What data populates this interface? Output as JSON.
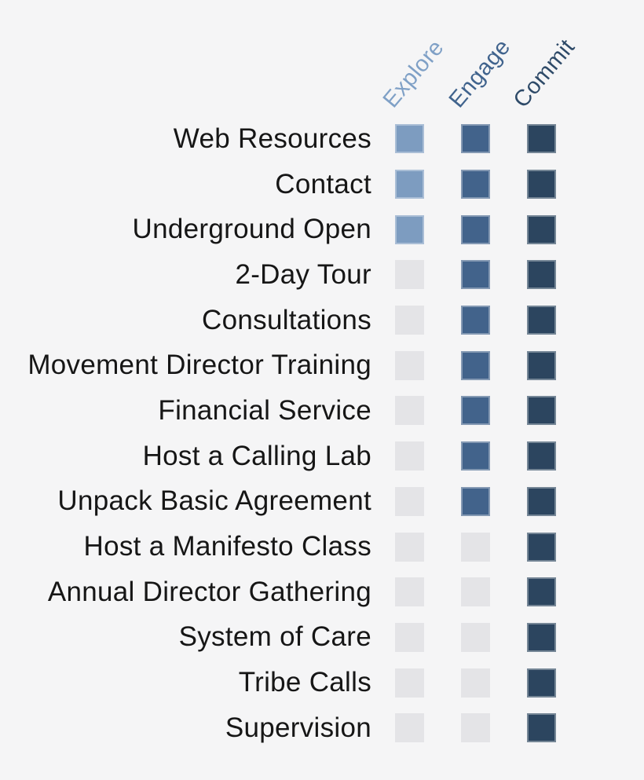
{
  "chart_data": {
    "type": "heatmap",
    "title": "",
    "columns": [
      "Explore",
      "Engage",
      "Commit"
    ],
    "rows": [
      {
        "label": "Web Resources",
        "tiers": [
          true,
          true,
          true
        ]
      },
      {
        "label": "Contact",
        "tiers": [
          true,
          true,
          true
        ]
      },
      {
        "label": "Underground Open",
        "tiers": [
          true,
          true,
          true
        ]
      },
      {
        "label": "2-Day Tour",
        "tiers": [
          false,
          true,
          true
        ]
      },
      {
        "label": "Consultations",
        "tiers": [
          false,
          true,
          true
        ]
      },
      {
        "label": "Movement Director Training",
        "tiers": [
          false,
          true,
          true
        ]
      },
      {
        "label": "Financial Service",
        "tiers": [
          false,
          true,
          true
        ]
      },
      {
        "label": "Host a Calling Lab",
        "tiers": [
          false,
          true,
          true
        ]
      },
      {
        "label": "Unpack Basic Agreement",
        "tiers": [
          false,
          true,
          true
        ]
      },
      {
        "label": "Host a Manifesto Class",
        "tiers": [
          false,
          false,
          true
        ]
      },
      {
        "label": "Annual Director Gathering",
        "tiers": [
          false,
          false,
          true
        ]
      },
      {
        "label": "System of Care",
        "tiers": [
          false,
          false,
          true
        ]
      },
      {
        "label": "Tribe Calls",
        "tiers": [
          false,
          false,
          true
        ]
      },
      {
        "label": "Supervision",
        "tiers": [
          false,
          false,
          true
        ]
      }
    ],
    "colors": {
      "background": "#F5F5F6",
      "explore": "#7D9CC0",
      "engage": "#42638B",
      "commit": "#2C455F",
      "inactive": "#E4E4E7",
      "header_explore": "#7FA0C6",
      "header_engage": "#40638D",
      "header_commit": "#2E4A68",
      "label_text": "#161616"
    },
    "legend_position": "top-rotated",
    "grid": false
  }
}
